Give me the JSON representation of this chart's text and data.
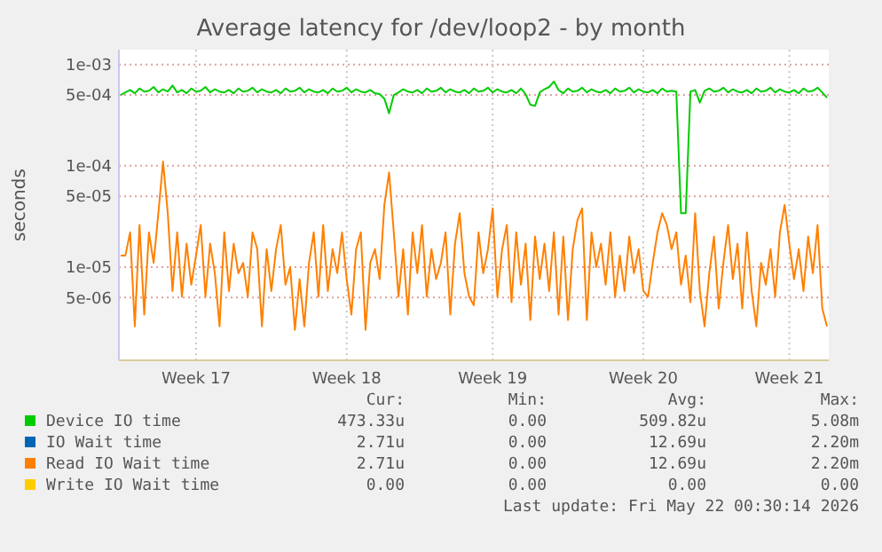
{
  "chart_data": {
    "type": "line",
    "title": "Average latency for /dev/loop2 - by month",
    "ylabel": "seconds",
    "log": "y",
    "grid": true,
    "legend": "bottom",
    "marker": "none",
    "line_style": "solid",
    "categories": [
      null,
      null,
      null,
      null,
      null,
      null,
      null,
      null,
      null,
      null,
      null,
      null,
      null,
      null,
      null,
      null,
      "Week 17",
      null,
      null,
      null,
      null,
      null,
      null,
      null,
      null,
      null,
      null,
      null,
      null,
      null,
      null,
      null,
      null,
      null,
      null,
      null,
      null,
      null,
      null,
      null,
      null,
      null,
      null,
      null,
      null,
      null,
      null,
      null,
      "Week 18",
      null,
      null,
      null,
      null,
      null,
      null,
      null,
      null,
      null,
      null,
      null,
      null,
      null,
      null,
      null,
      null,
      null,
      null,
      null,
      null,
      null,
      null,
      null,
      null,
      null,
      null,
      null,
      null,
      null,
      null,
      "Week 19",
      null,
      null,
      null,
      null,
      null,
      null,
      null,
      null,
      null,
      null,
      null,
      null,
      null,
      null,
      null,
      null,
      null,
      null,
      null,
      null,
      null,
      null,
      null,
      null,
      null,
      null,
      null,
      null,
      null,
      null,
      null,
      "Week 20",
      null,
      null,
      null,
      null,
      null,
      null,
      null,
      null,
      null,
      null,
      null,
      null,
      null,
      null,
      null,
      null,
      null,
      null,
      null,
      null,
      null,
      null,
      null,
      null,
      null,
      null,
      null,
      null,
      null,
      null,
      "Week 21",
      null,
      null,
      null,
      null,
      null,
      null,
      null,
      null
    ],
    "ylim": [
      1.2e-06,
      0.0014
    ],
    "yticks": [
      {
        "value": 5e-06,
        "label": "5e-06"
      },
      {
        "value": 1e-05,
        "label": "1e-05"
      },
      {
        "value": 5e-05,
        "label": "5e-05"
      },
      {
        "value": 0.0001,
        "label": "1e-04"
      },
      {
        "value": 0.0005,
        "label": "5e-04"
      },
      {
        "value": 0.001,
        "label": "1e-03"
      }
    ],
    "series": [
      {
        "name": "Device IO time",
        "color": "#00cc00",
        "values": [
          0.0005,
          0.00053,
          0.00056,
          0.00052,
          0.00058,
          0.00054,
          0.00055,
          0.0006,
          0.00053,
          0.00057,
          0.00054,
          0.00062,
          0.00053,
          0.00056,
          0.00052,
          0.00058,
          0.00054,
          0.00055,
          0.0006,
          0.00053,
          0.00057,
          0.00054,
          0.00053,
          0.00056,
          0.00052,
          0.00058,
          0.00054,
          0.00055,
          0.00059,
          0.00053,
          0.00057,
          0.00054,
          0.00053,
          0.00056,
          0.00052,
          0.00058,
          0.00054,
          0.00055,
          0.00059,
          0.00053,
          0.00057,
          0.00054,
          0.00053,
          0.00056,
          0.00052,
          0.00058,
          0.00054,
          0.00055,
          0.00059,
          0.00053,
          0.00057,
          0.00054,
          0.00053,
          0.00056,
          0.00052,
          0.00051,
          0.00046,
          0.00033,
          0.0005,
          0.00053,
          0.00057,
          0.00054,
          0.00053,
          0.00056,
          0.00052,
          0.00058,
          0.00054,
          0.00055,
          0.00059,
          0.00053,
          0.00057,
          0.00054,
          0.00053,
          0.00056,
          0.00052,
          0.00058,
          0.00054,
          0.00055,
          0.00059,
          0.00053,
          0.00057,
          0.00054,
          0.00053,
          0.00056,
          0.00052,
          0.00058,
          0.00051,
          0.0004,
          0.00039,
          0.00053,
          0.00057,
          0.0006,
          0.00068,
          0.00056,
          0.00052,
          0.00058,
          0.00054,
          0.00055,
          0.00059,
          0.00053,
          0.00057,
          0.00054,
          0.00053,
          0.00056,
          0.00052,
          0.00058,
          0.00054,
          0.00055,
          0.00059,
          0.00053,
          0.00057,
          0.00054,
          0.00053,
          0.00056,
          0.00052,
          0.00058,
          0.00054,
          0.00055,
          0.00054,
          3.4e-05,
          3.4e-05,
          0.00054,
          0.00056,
          0.00042,
          0.00055,
          0.00058,
          0.00054,
          0.00055,
          0.00059,
          0.00053,
          0.00057,
          0.00054,
          0.00053,
          0.00056,
          0.00052,
          0.00058,
          0.00054,
          0.00055,
          0.00059,
          0.00053,
          0.00057,
          0.00054,
          0.00053,
          0.00056,
          0.00052,
          0.00058,
          0.00054,
          0.00055,
          0.00059,
          0.00053,
          0.00047
        ]
      },
      {
        "name": "IO Wait time",
        "color": "#0066b3",
        "values": [
          null,
          null,
          null,
          null,
          null,
          null,
          null,
          null,
          null,
          null,
          null,
          null,
          null,
          null,
          null,
          null,
          null,
          null,
          null,
          null,
          null,
          null,
          null,
          null,
          null,
          null,
          null,
          null,
          null,
          null,
          null,
          null,
          null,
          null,
          null,
          null,
          null,
          null,
          null,
          null,
          null,
          null,
          null,
          null,
          null,
          null,
          null,
          null,
          null,
          null,
          null,
          null,
          null,
          null,
          null,
          null,
          null,
          null,
          null,
          null,
          null,
          null,
          null,
          null,
          null,
          null,
          null,
          null,
          null,
          null,
          null,
          null,
          null,
          null,
          null,
          null,
          null,
          null,
          null,
          null,
          null,
          null,
          null,
          null,
          null,
          null,
          null,
          null,
          null,
          null,
          null,
          null,
          null,
          null,
          null,
          null,
          null,
          null,
          null,
          null,
          null,
          null,
          null,
          null,
          null,
          null,
          null,
          null,
          null,
          null,
          null,
          null,
          null,
          null,
          null,
          null,
          null,
          null,
          null,
          null,
          null,
          null,
          null,
          null,
          null,
          null,
          null,
          null,
          null,
          null,
          null,
          null,
          null,
          null,
          null,
          null,
          null,
          null,
          null,
          null,
          null,
          null,
          null,
          null,
          null,
          null,
          null,
          null,
          null,
          null,
          null
        ]
      },
      {
        "name": "Read IO Wait time",
        "color": "#ff8000",
        "values": [
          1.3e-05,
          1.3e-05,
          2.2e-05,
          2.6e-06,
          2.6e-05,
          3.4e-06,
          2.2e-05,
          1.1e-05,
          3.4e-05,
          0.00011,
          3.4e-05,
          5.8e-06,
          2.2e-05,
          5.1e-06,
          1.7e-05,
          6.7e-06,
          1.3e-05,
          2.6e-05,
          5.1e-06,
          1.7e-05,
          8.7e-06,
          2.6e-06,
          2.2e-05,
          5.8e-06,
          1.7e-05,
          8.7e-06,
          1.1e-05,
          5.1e-06,
          2.2e-05,
          1.5e-05,
          2.6e-06,
          1.5e-05,
          5.8e-06,
          1.5e-05,
          2.6e-05,
          6.7e-06,
          1e-05,
          2.4e-06,
          7.6e-06,
          2.6e-06,
          1.1e-05,
          2.2e-05,
          5.1e-06,
          2.6e-05,
          5.8e-06,
          1.5e-05,
          8.7e-06,
          2.2e-05,
          7.6e-06,
          3.4e-06,
          1.5e-05,
          2.2e-05,
          2.4e-06,
          1.1e-05,
          1.5e-05,
          7.6e-06,
          4.1e-05,
          8.6e-05,
          2.2e-05,
          5.1e-06,
          1.5e-05,
          3.4e-06,
          2.2e-05,
          8.7e-06,
          2.6e-05,
          5.1e-06,
          1.5e-05,
          7.6e-06,
          1.1e-05,
          2.2e-05,
          3.4e-06,
          1.7e-05,
          3.4e-05,
          8.7e-06,
          5.1e-06,
          4.2e-06,
          2.2e-05,
          8.7e-06,
          1.5e-05,
          3.8e-05,
          5.1e-06,
          1.5e-05,
          2.6e-05,
          4.5e-06,
          2.2e-05,
          6.7e-06,
          1.7e-05,
          3e-06,
          2e-05,
          7.6e-06,
          1.7e-05,
          5.8e-06,
          2.2e-05,
          3.4e-06,
          2e-05,
          3e-06,
          1.5e-05,
          2.9e-05,
          3.8e-05,
          3e-06,
          2.2e-05,
          1e-05,
          1.7e-05,
          6.7e-06,
          2.2e-05,
          5.1e-06,
          1.3e-05,
          5.8e-06,
          2e-05,
          8.7e-06,
          1.5e-05,
          5.8e-06,
          5.1e-06,
          1.1e-05,
          2.2e-05,
          3.4e-05,
          2.6e-05,
          1.5e-05,
          2.2e-05,
          6.7e-06,
          1.3e-05,
          4.5e-06,
          3.4e-05,
          5.8e-06,
          2.6e-06,
          8.7e-06,
          2e-05,
          3.9e-06,
          1.1e-05,
          2.6e-05,
          7.6e-06,
          1.7e-05,
          3.9e-06,
          2.2e-05,
          5.8e-06,
          2.6e-06,
          1.1e-05,
          6.7e-06,
          1.5e-05,
          5.1e-06,
          2.2e-05,
          4.1e-05,
          1.7e-05,
          7.6e-06,
          1.5e-05,
          5.8e-06,
          2e-05,
          8.7e-06,
          2.6e-05,
          3.9e-06,
          2.6e-06
        ]
      },
      {
        "name": "Write IO Wait time",
        "color": "#ffcc00",
        "values": [
          null,
          null,
          null,
          null,
          null,
          null,
          null,
          null,
          null,
          null,
          null,
          null,
          null,
          null,
          null,
          null,
          null,
          null,
          null,
          null,
          null,
          null,
          null,
          null,
          null,
          null,
          null,
          null,
          null,
          null,
          null,
          null,
          null,
          null,
          null,
          null,
          null,
          null,
          null,
          null,
          null,
          null,
          null,
          null,
          null,
          null,
          null,
          null,
          null,
          null,
          null,
          null,
          null,
          null,
          null,
          null,
          null,
          null,
          null,
          null,
          null,
          null,
          null,
          null,
          null,
          null,
          null,
          null,
          null,
          null,
          null,
          null,
          null,
          null,
          null,
          null,
          null,
          null,
          null,
          null,
          null,
          null,
          null,
          null,
          null,
          null,
          null,
          null,
          null,
          null,
          null,
          null,
          null,
          null,
          null,
          null,
          null,
          null,
          null,
          null,
          null,
          null,
          null,
          null,
          null,
          null,
          null,
          null,
          null,
          null,
          null,
          null,
          null,
          null,
          null,
          null,
          null,
          null,
          null,
          null,
          null,
          null,
          null,
          null,
          null,
          null,
          null,
          null,
          null,
          null,
          null,
          null,
          null,
          null,
          null,
          null,
          null,
          null,
          null,
          null,
          null,
          null,
          null,
          null,
          null,
          null,
          null,
          null,
          null,
          null,
          null
        ]
      }
    ],
    "annotations": [
      "Cur:",
      "Min:",
      "Avg:",
      "Max:",
      "473.33u",
      "0.00",
      "509.82u",
      "5.08m",
      "2.71u",
      "0.00",
      "12.69u",
      "2.20m",
      "2.71u",
      "0.00",
      "12.69u",
      "2.20m",
      "0.00",
      "0.00",
      "0.00",
      "0.00",
      "Last update: Fri May 22 00:30:14 2026"
    ]
  }
}
